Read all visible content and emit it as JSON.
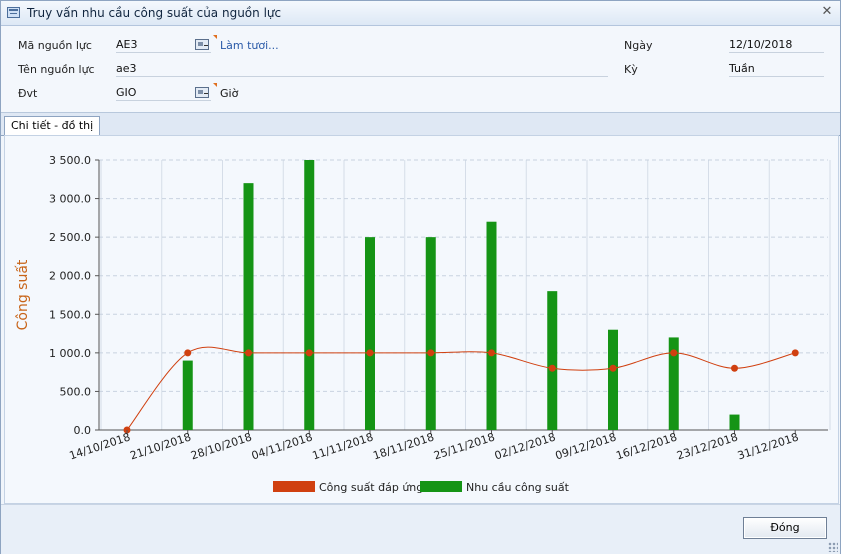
{
  "window": {
    "title": "Truy vấn nhu cầu công suất của nguồn lực",
    "close_icon": "close-icon"
  },
  "form": {
    "ma_nguon_luc": {
      "label": "Mã nguồn lực",
      "value": "AE3",
      "action_link": "Làm tươi..."
    },
    "ten_nguon_luc": {
      "label": "Tên nguồn lực",
      "value": "ae3"
    },
    "dvt": {
      "label": "Đvt",
      "value": "GIO",
      "description": "Giờ"
    },
    "ngay": {
      "label": "Ngày",
      "value": "12/10/2018"
    },
    "ky": {
      "label": "Kỳ",
      "value": "Tuần"
    }
  },
  "tabs": [
    {
      "label": "Chi tiết - đồ thị"
    }
  ],
  "footer": {
    "close_button": "Đóng"
  },
  "chart_data": {
    "type": "bar",
    "ylabel": "Công suất",
    "xlabel": "",
    "ylim": [
      0,
      3500
    ],
    "yticks": [
      "0.0",
      "500.0",
      "1 000.0",
      "1 500.0",
      "2 000.0",
      "2 500.0",
      "3 000.0",
      "3 500.0"
    ],
    "categories": [
      "14/10/2018",
      "21/10/2018",
      "28/10/2018",
      "04/11/2018",
      "11/11/2018",
      "18/11/2018",
      "25/11/2018",
      "02/12/2018",
      "09/12/2018",
      "16/12/2018",
      "23/12/2018",
      "31/12/2018"
    ],
    "series": [
      {
        "name": "Công suất đáp ứng",
        "kind": "line",
        "color": "#d04010",
        "values": [
          0,
          1000,
          1000,
          1000,
          1000,
          1000,
          1000,
          800,
          800,
          1000,
          800,
          1000
        ]
      },
      {
        "name": "Nhu cầu công suất",
        "kind": "bar",
        "color": "#159415",
        "values": [
          0,
          900,
          3200,
          3500,
          2500,
          2500,
          2700,
          1800,
          1300,
          1200,
          200,
          0
        ]
      }
    ],
    "grid": true,
    "legend": "bottom"
  }
}
